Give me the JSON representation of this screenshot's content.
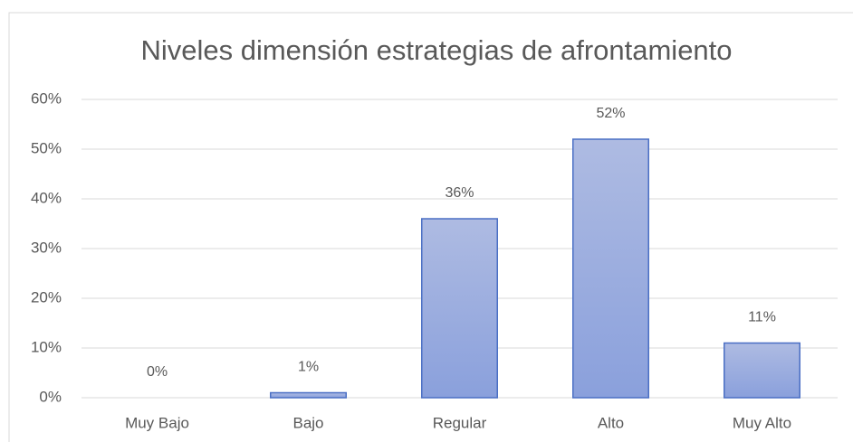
{
  "chart_data": {
    "type": "bar",
    "title": "Niveles dimensión estrategias de afrontamiento",
    "categories": [
      "Muy Bajo",
      "Bajo",
      "Regular",
      "Alto",
      "Muy Alto"
    ],
    "values": [
      0,
      1,
      36,
      52,
      11
    ],
    "value_labels": [
      "0%",
      "1%",
      "36%",
      "52%",
      "11%"
    ],
    "color": "#8fa5dc",
    "ylim": [
      0,
      60
    ],
    "yticks": [
      {
        "value": 0,
        "label": "0%"
      },
      {
        "value": 10,
        "label": "10%"
      },
      {
        "value": 20,
        "label": "20%"
      },
      {
        "value": 30,
        "label": "30%"
      },
      {
        "value": 40,
        "label": "40%"
      },
      {
        "value": 50,
        "label": "50%"
      },
      {
        "value": 60,
        "label": "60%"
      }
    ],
    "grid": true
  }
}
